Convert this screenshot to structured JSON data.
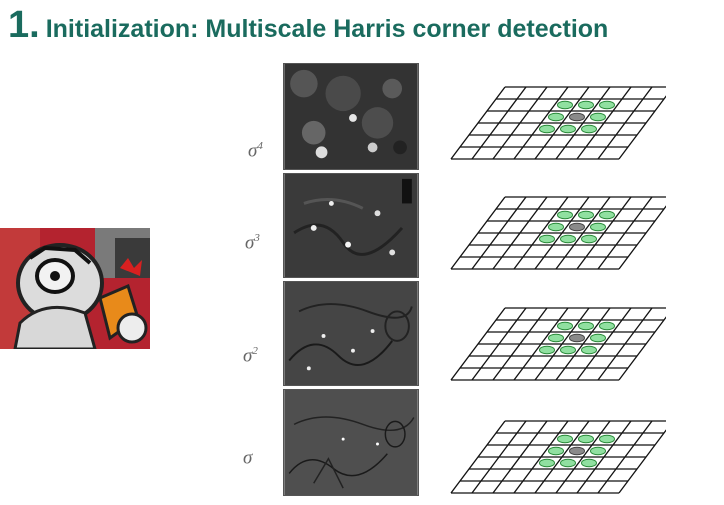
{
  "title": {
    "number": "1.",
    "text": "Initialization: Multiscale Harris corner detection"
  },
  "scales": [
    {
      "label": "σ",
      "exponent": "4"
    },
    {
      "label": "σ",
      "exponent": "3"
    },
    {
      "label": "σ",
      "exponent": "2"
    },
    {
      "label": "σ",
      "exponent": ""
    }
  ],
  "colors": {
    "title": "#1a6b5e",
    "ellipse_fill": "#90e0a0",
    "ellipse_stroke": "#2a8a3a",
    "center_fill": "#8a8a8a"
  }
}
